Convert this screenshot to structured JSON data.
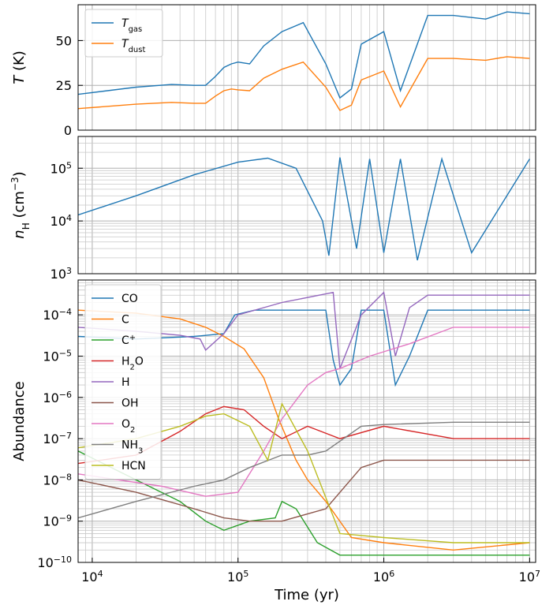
{
  "chart_data": [
    {
      "type": "line",
      "xscale": "log",
      "xlim": [
        8000,
        11000000
      ],
      "ylim": [
        0,
        70
      ],
      "ylabel": "T (K)",
      "xlabel": "",
      "yticks": [
        0,
        25,
        50
      ],
      "ytick_labels": [
        "0",
        "25",
        "50"
      ],
      "grid": true,
      "legend": "upper-left",
      "series": [
        {
          "name": "T_gas",
          "color": "#1f77b4",
          "x": [
            8000,
            20000,
            35000,
            50000,
            60000,
            70000,
            80000,
            90000,
            100000,
            120000,
            150000,
            200000,
            280000,
            400000,
            500000,
            600000,
            700000,
            1000000,
            1300000,
            2000000,
            3000000,
            5000000,
            7000000,
            10000000
          ],
          "y": [
            20,
            24,
            25.5,
            25,
            25,
            30,
            35,
            37,
            38,
            37,
            47,
            55,
            60,
            37,
            18,
            23,
            48,
            55,
            22,
            64,
            64,
            62,
            66,
            65
          ]
        },
        {
          "name": "T_dust",
          "color": "#ff7f0e",
          "x": [
            8000,
            20000,
            35000,
            50000,
            60000,
            70000,
            80000,
            90000,
            100000,
            120000,
            150000,
            200000,
            280000,
            400000,
            500000,
            600000,
            700000,
            1000000,
            1300000,
            2000000,
            3000000,
            5000000,
            7000000,
            10000000
          ],
          "y": [
            12,
            14.5,
            15.5,
            15,
            15,
            19,
            22,
            23,
            22.5,
            22,
            29,
            34,
            38,
            24,
            11,
            14,
            28,
            33,
            13,
            40,
            40,
            39,
            41,
            40
          ]
        }
      ],
      "legend_entries": [
        {
          "main": "T",
          "sub": "gas"
        },
        {
          "main": "T",
          "sub": "dust"
        }
      ]
    },
    {
      "type": "line",
      "xscale": "log",
      "yscale": "log",
      "xlim": [
        8000,
        11000000
      ],
      "ylim": [
        1000,
        400000
      ],
      "ylabel": "n_H (cm^-3)",
      "yticks": [
        1000,
        10000,
        100000
      ],
      "ytick_labels": [
        {
          "base": "10",
          "exp": "3"
        },
        {
          "base": "10",
          "exp": "4"
        },
        {
          "base": "10",
          "exp": "5"
        }
      ],
      "grid": true,
      "series": [
        {
          "name": "n_H",
          "color": "#1f77b4",
          "x": [
            8000,
            20000,
            50000,
            100000,
            160000,
            250000,
            380000,
            420000,
            500000,
            650000,
            800000,
            1000000,
            1300000,
            1700000,
            2500000,
            4000000,
            10000000
          ],
          "y": [
            13000,
            30000,
            75000,
            130000,
            155000,
            100000,
            10000,
            2200,
            160000,
            3000,
            150000,
            2500,
            150000,
            1800,
            150000,
            2500,
            150000
          ]
        }
      ]
    },
    {
      "type": "line",
      "xscale": "log",
      "yscale": "log",
      "xlim": [
        8000,
        11000000
      ],
      "ylim": [
        1e-10,
        0.0007
      ],
      "ylabel": "Abundance",
      "xlabel": "Time (yr)",
      "yticks": [
        1e-10,
        1e-09,
        1e-08,
        1e-07,
        1e-06,
        1e-05,
        0.0001
      ],
      "ytick_labels": [
        {
          "base": "10",
          "exp": "−10"
        },
        {
          "base": "10",
          "exp": "−9"
        },
        {
          "base": "10",
          "exp": "−8"
        },
        {
          "base": "10",
          "exp": "−7"
        },
        {
          "base": "10",
          "exp": "−6"
        },
        {
          "base": "10",
          "exp": "−5"
        },
        {
          "base": "10",
          "exp": "−4"
        }
      ],
      "xticks": [
        10000,
        100000,
        1000000,
        10000000
      ],
      "xtick_labels": [
        {
          "base": "10",
          "exp": "4"
        },
        {
          "base": "10",
          "exp": "5"
        },
        {
          "base": "10",
          "exp": "6"
        },
        {
          "base": "10",
          "exp": "7"
        }
      ],
      "grid": true,
      "legend": "upper-left",
      "legend_entries": [
        {
          "main": "CO",
          "sub": "",
          "sup": ""
        },
        {
          "main": "C",
          "sub": "",
          "sup": ""
        },
        {
          "main": "C",
          "sub": "",
          "sup": "+"
        },
        {
          "main": "H",
          "sub": "2",
          "tail": "O"
        },
        {
          "main": "H",
          "sub": "",
          "sup": ""
        },
        {
          "main": "OH",
          "sub": "",
          "sup": ""
        },
        {
          "main": "O",
          "sub": "2",
          "sup": ""
        },
        {
          "main": "NH",
          "sub": "3",
          "sup": ""
        },
        {
          "main": "HCN",
          "sub": "",
          "sup": ""
        }
      ],
      "series": [
        {
          "name": "CO",
          "color": "#1f77b4",
          "x": [
            8000,
            20000,
            50000,
            80000,
            95000,
            130000,
            400000,
            450000,
            500000,
            600000,
            700000,
            1000000,
            1200000,
            1500000,
            2000000,
            4000000,
            10000000
          ],
          "y": [
            3e-05,
            2.6e-05,
            3e-05,
            3.5e-05,
            0.0001,
            0.00013,
            0.00013,
            8e-06,
            2e-06,
            5e-06,
            0.00013,
            0.00013,
            2e-06,
            1e-05,
            0.00013,
            0.00013,
            0.00013
          ]
        },
        {
          "name": "C",
          "color": "#ff7f0e",
          "x": [
            8000,
            20000,
            40000,
            60000,
            80000,
            110000,
            150000,
            190000,
            250000,
            300000,
            400000,
            600000,
            1000000,
            3000000,
            10000000
          ],
          "y": [
            0.00013,
            0.00011,
            8e-05,
            5e-05,
            3e-05,
            1.5e-05,
            3e-06,
            3e-07,
            3e-08,
            1e-08,
            3e-09,
            4e-10,
            3e-10,
            2e-10,
            3e-10
          ]
        },
        {
          "name": "C+",
          "color": "#2ca02c",
          "x": [
            8000,
            20000,
            40000,
            60000,
            80000,
            120000,
            180000,
            200000,
            250000,
            350000,
            500000,
            1000000,
            3000000,
            10000000
          ],
          "y": [
            5e-08,
            1e-08,
            3e-09,
            1e-09,
            6e-10,
            1e-09,
            1.2e-09,
            3e-09,
            2e-09,
            3e-10,
            1.5e-10,
            1.5e-10,
            1.5e-10,
            1.5e-10
          ]
        },
        {
          "name": "H2O",
          "color": "#d62728",
          "x": [
            8000,
            20000,
            40000,
            60000,
            80000,
            110000,
            150000,
            200000,
            300000,
            500000,
            1000000,
            3000000,
            10000000
          ],
          "y": [
            2.5e-08,
            4e-08,
            1.5e-07,
            4e-07,
            6e-07,
            5e-07,
            2e-07,
            1e-07,
            2e-07,
            1e-07,
            2e-07,
            1e-07,
            1e-07
          ]
        },
        {
          "name": "H",
          "color": "#9467bd",
          "x": [
            8000,
            20000,
            40000,
            55000,
            60000,
            80000,
            100000,
            200000,
            450000,
            500000,
            700000,
            1000000,
            1200000,
            1500000,
            2000000,
            5000000,
            10000000
          ],
          "y": [
            5e-05,
            4e-05,
            3.2e-05,
            2.6e-05,
            1.4e-05,
            3.5e-05,
            0.0001,
            0.0002,
            0.00035,
            5e-06,
            0.0001,
            0.00035,
            1e-05,
            0.00015,
            0.0003,
            0.0003,
            0.0003
          ]
        },
        {
          "name": "OH",
          "color": "#8c564b",
          "x": [
            8000,
            20000,
            50000,
            80000,
            120000,
            200000,
            400000,
            700000,
            1000000,
            3000000,
            10000000
          ],
          "y": [
            1e-08,
            5e-09,
            2e-09,
            1.2e-09,
            1e-09,
            1e-09,
            2e-09,
            2e-08,
            3e-08,
            3e-08,
            3e-08
          ]
        },
        {
          "name": "O2",
          "color": "#e377c2",
          "x": [
            8000,
            30000,
            60000,
            100000,
            150000,
            200000,
            300000,
            400000,
            500000,
            800000,
            1500000,
            3000000,
            10000000
          ],
          "y": [
            1.4e-08,
            7e-09,
            4e-09,
            5e-09,
            5e-08,
            3e-07,
            2e-06,
            4e-06,
            5e-06,
            1e-05,
            2e-05,
            5e-05,
            5e-05
          ]
        },
        {
          "name": "NH3",
          "color": "#7f7f7f",
          "x": [
            8000,
            20000,
            50000,
            80000,
            120000,
            200000,
            300000,
            400000,
            700000,
            1000000,
            3000000,
            10000000
          ],
          "y": [
            1.2e-09,
            3e-09,
            7e-09,
            1e-08,
            2e-08,
            4e-08,
            4e-08,
            5e-08,
            2e-07,
            2.2e-07,
            2.5e-07,
            2.5e-07
          ]
        },
        {
          "name": "HCN",
          "color": "#bcbd22",
          "x": [
            8000,
            20000,
            40000,
            60000,
            80000,
            120000,
            160000,
            200000,
            300000,
            500000,
            1000000,
            3000000,
            10000000
          ],
          "y": [
            6e-08,
            1e-07,
            2e-07,
            3.5e-07,
            4e-07,
            2e-07,
            3e-08,
            7e-07,
            5e-08,
            5e-10,
            4e-10,
            3e-10,
            3e-10
          ]
        }
      ]
    }
  ]
}
